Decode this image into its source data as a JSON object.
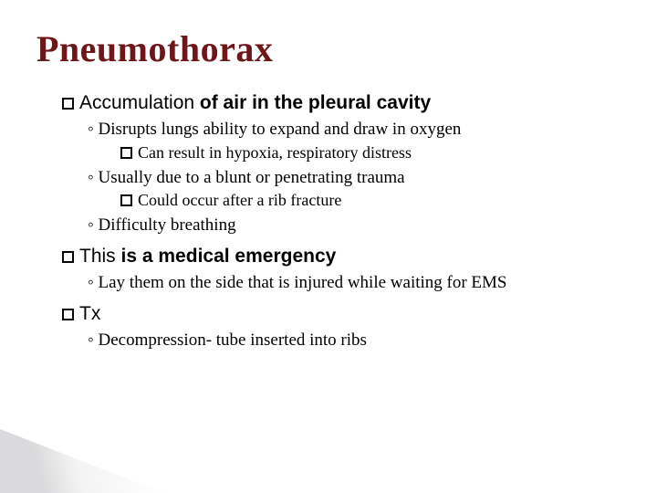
{
  "title": {
    "text": "Pneumothorax",
    "color": "#6d171a",
    "fontsize": 40,
    "weight": "bold"
  },
  "body_fontsize": {
    "lvl1": 21,
    "lvl2": 19,
    "lvl3": 18
  },
  "colors": {
    "text": "#000000",
    "background": "#ffffff",
    "title": "#6d171a",
    "corner_gradient_from": "#969699",
    "corner_gradient_to": "#ffffff"
  },
  "bullets": [
    {
      "lead": "Accumulation",
      "rest": " of air in the pleural cavity",
      "bold_rest": true,
      "sub": [
        {
          "text": "Disrupts lungs ability to expand and draw in oxygen",
          "sub": [
            {
              "text": "Can result in hypoxia, respiratory distress"
            }
          ]
        },
        {
          "text": "Usually due to a blunt or penetrating trauma",
          "sub": [
            {
              "text": "Could occur after a rib fracture"
            }
          ]
        },
        {
          "text": "Difficulty breathing"
        }
      ]
    },
    {
      "lead": "This",
      "rest": " is a medical emergency",
      "bold_rest": true,
      "sub": [
        {
          "text": "Lay them on the side that is injured while waiting for EMS"
        }
      ]
    },
    {
      "lead": "Tx",
      "rest": "",
      "bold_rest": false,
      "sub": [
        {
          "text": "Decompression- tube inserted into ribs"
        }
      ]
    }
  ]
}
